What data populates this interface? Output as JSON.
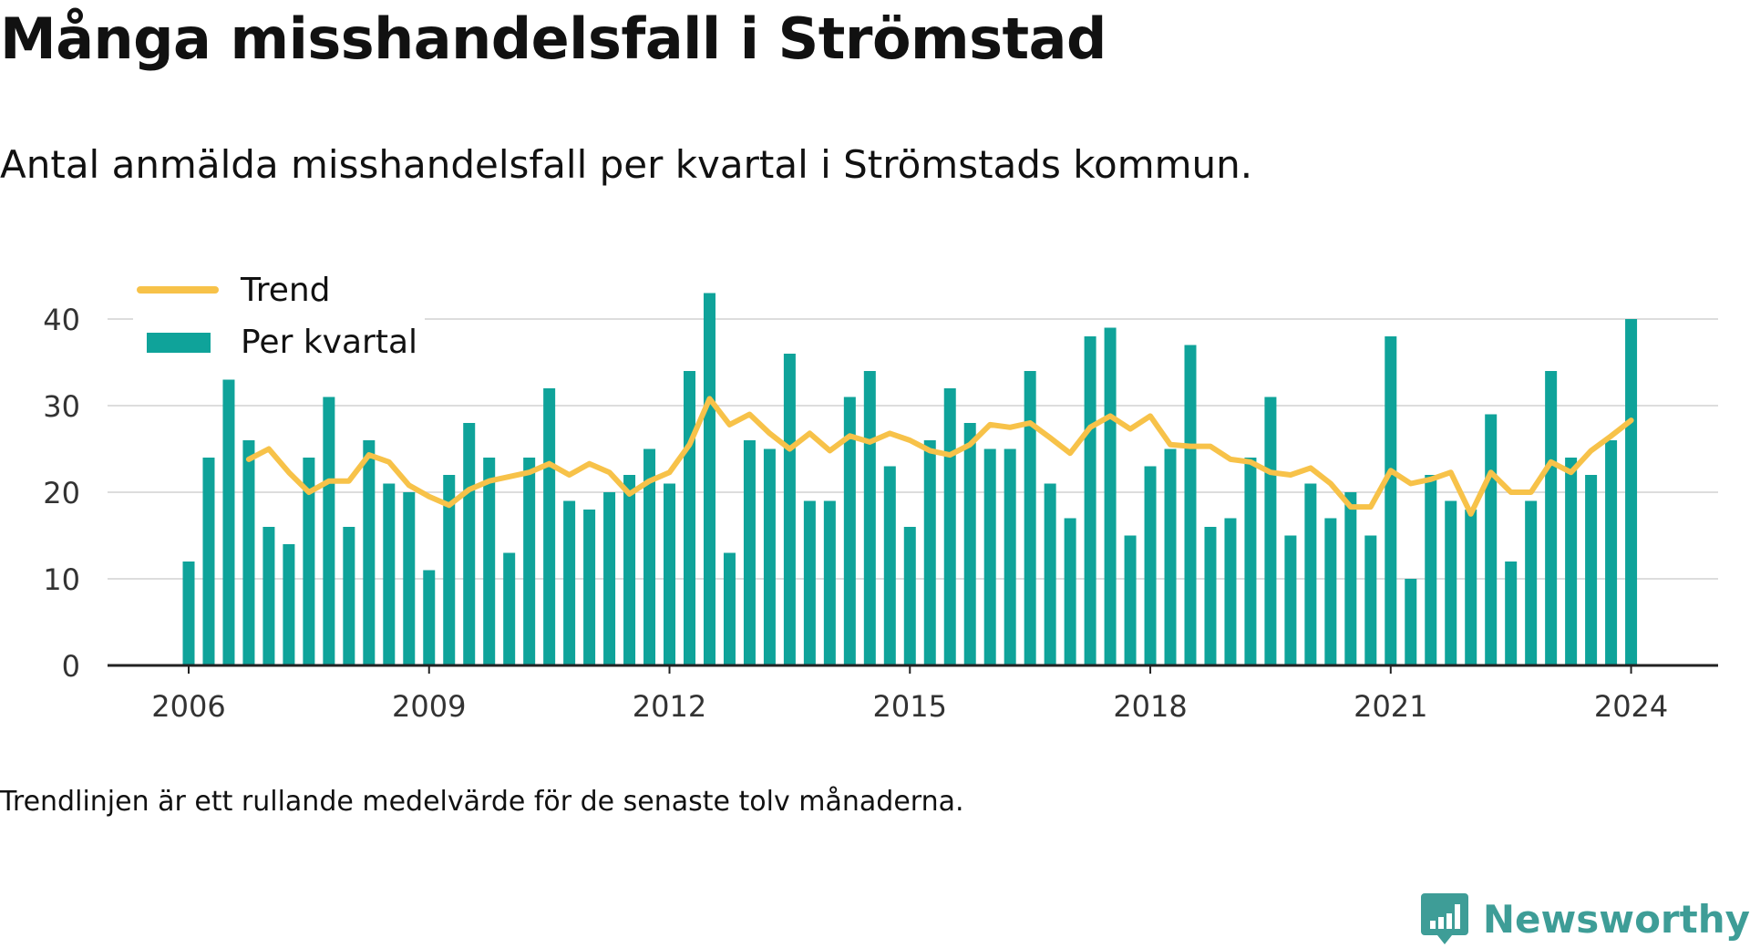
{
  "title": "Många misshandelsfall i Strömstad",
  "subtitle": "Antal anmälda misshandelsfall per kvartal i Strömstads kommun.",
  "footnote": "Trendlinjen är ett rullande medelvärde för de senaste tolv månaderna.",
  "brand": {
    "name": "Newsworthy",
    "icon": "newsworthy-logo-icon",
    "color": "#3e9d97"
  },
  "colors": {
    "bars": "#0fa39a",
    "trend": "#f7c249",
    "grid": "#dddddd",
    "axis": "#222222"
  },
  "chart_data": {
    "type": "bar",
    "title": "",
    "xlabel": "",
    "ylabel": "",
    "ylim": [
      0,
      44
    ],
    "yticks": [
      0,
      10,
      20,
      30,
      40
    ],
    "x_tick_labels": [
      "2006",
      "2009",
      "2012",
      "2015",
      "2018",
      "2021",
      "2024"
    ],
    "x_tick_years": [
      2006,
      2009,
      2012,
      2015,
      2018,
      2021,
      2024
    ],
    "grid": true,
    "legend_position": "top-left",
    "x_start": "2006 Q1",
    "x_end": "2024 Q1",
    "series": [
      {
        "name": "Per kvartal",
        "type": "bar",
        "values": [
          12,
          24,
          33,
          26,
          16,
          14,
          24,
          31,
          16,
          26,
          21,
          20,
          11,
          22,
          28,
          24,
          13,
          24,
          32,
          19,
          18,
          20,
          22,
          25,
          21,
          34,
          43,
          13,
          26,
          25,
          36,
          19,
          19,
          31,
          34,
          23,
          16,
          26,
          32,
          28,
          25,
          25,
          34,
          21,
          17,
          38,
          39,
          15,
          23,
          25,
          37,
          16,
          17,
          24,
          31,
          15,
          21,
          17,
          20,
          15,
          38,
          10,
          22,
          19,
          18,
          29,
          12,
          19,
          34,
          24,
          22,
          26,
          40
        ]
      },
      {
        "name": "Trend",
        "type": "line",
        "values": [
          null,
          null,
          null,
          23.8,
          25,
          22.3,
          20,
          21.3,
          21.3,
          24.3,
          23.5,
          20.8,
          19.5,
          18.5,
          20.3,
          21.3,
          21.8,
          22.3,
          23.3,
          22,
          23.3,
          22.3,
          19.8,
          21.3,
          22.3,
          25.5,
          30.8,
          27.8,
          29,
          26.8,
          25,
          26.8,
          24.8,
          26.5,
          25.8,
          26.8,
          26,
          24.8,
          24.3,
          25.5,
          27.8,
          27.5,
          28,
          26.3,
          24.5,
          27.5,
          28.8,
          27.3,
          28.8,
          25.5,
          25.3,
          25.3,
          23.8,
          23.5,
          22.3,
          22,
          22.8,
          21,
          18.3,
          18.3,
          22.5,
          21,
          21.5,
          22.3,
          17.5,
          22.3,
          20,
          20,
          23.5,
          22.3,
          24.8,
          26.5,
          28.3
        ]
      }
    ]
  }
}
